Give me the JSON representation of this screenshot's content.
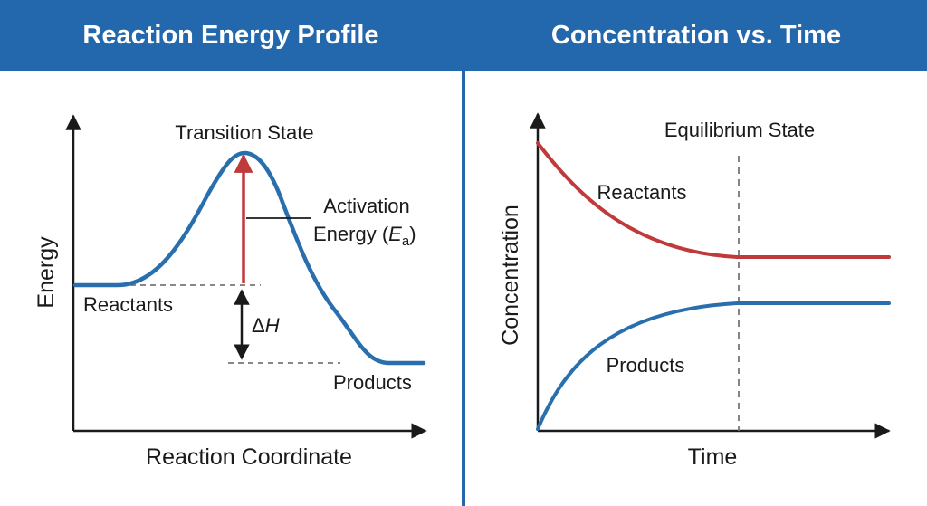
{
  "left_panel": {
    "title": "Reaction Energy Profile",
    "y_axis_label": "Energy",
    "x_axis_label": "Reaction Coordinate",
    "transition_state_label": "Transition State",
    "activation_label_line1": "Activation",
    "activation_label_line2": "Energy (",
    "activation_symbol": "E",
    "activation_subscript": "a",
    "activation_close": ")",
    "reactants_label": "Reactants",
    "products_label": "Products",
    "delta_symbol": "Δ",
    "delta_var": "H"
  },
  "right_panel": {
    "title": "Concentration vs. Time",
    "y_axis_label": "Concentration",
    "x_axis_label": "Time",
    "equilibrium_label": "Equilibrium State",
    "reactants_label": "Reactants",
    "products_label": "Products"
  },
  "colors": {
    "header_bg": "#2368ad",
    "energy_curve": "#2a6fad",
    "reactants_curve": "#c0393b",
    "products_curve": "#2a6fad",
    "activation_arrow": "#c0393b",
    "axis": "#1a1a1a",
    "dashed": "#777777"
  }
}
